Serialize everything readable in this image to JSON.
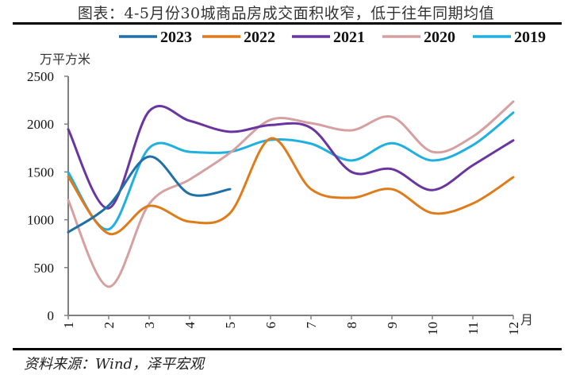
{
  "header": {
    "title": "图表：4-5月份30城商品房成交面积收窄，低于往年同期均值"
  },
  "footer": {
    "source": "资料来源：Wind，泽平宏观"
  },
  "chart_data": {
    "type": "line",
    "title": "图表：4-5月份30城商品房成交面积收窄，低于往年同期均值",
    "xlabel": "月",
    "ylabel": "万平方米",
    "x": [
      1,
      2,
      3,
      4,
      5,
      6,
      7,
      8,
      9,
      10,
      11,
      12
    ],
    "x_tick_labels": [
      "1",
      "2",
      "3",
      "4",
      "5",
      "6",
      "7",
      "8",
      "9",
      "10",
      "11",
      "12"
    ],
    "ylim": [
      0,
      2500
    ],
    "y_ticks": [
      0,
      500,
      1000,
      1500,
      2000,
      2500
    ],
    "grid": false,
    "smooth": true,
    "legend_position": "top",
    "series": [
      {
        "name": "2023",
        "color": "#1f6fa8",
        "values": [
          870,
          1150,
          1660,
          1270,
          1320,
          null,
          null,
          null,
          null,
          null,
          null,
          null
        ]
      },
      {
        "name": "2022",
        "color": "#e07b1a",
        "values": [
          1450,
          855,
          1145,
          980,
          1070,
          1850,
          1320,
          1230,
          1320,
          1070,
          1170,
          1445
        ]
      },
      {
        "name": "2021",
        "color": "#6a35a0",
        "values": [
          1945,
          1120,
          2135,
          2035,
          1920,
          1990,
          1960,
          1500,
          1530,
          1310,
          1570,
          1830
        ]
      },
      {
        "name": "2020",
        "color": "#d6a0a0",
        "values": [
          1205,
          300,
          1165,
          1420,
          1700,
          2045,
          2010,
          1935,
          2075,
          1710,
          1870,
          2235
        ]
      },
      {
        "name": "2019",
        "color": "#1fb0e0",
        "values": [
          1495,
          900,
          1750,
          1710,
          1710,
          1835,
          1795,
          1620,
          1800,
          1620,
          1780,
          2120
        ]
      }
    ]
  },
  "axis": {
    "y_unit": "万平方米",
    "x_unit": "月",
    "axis_color": "#808080"
  }
}
